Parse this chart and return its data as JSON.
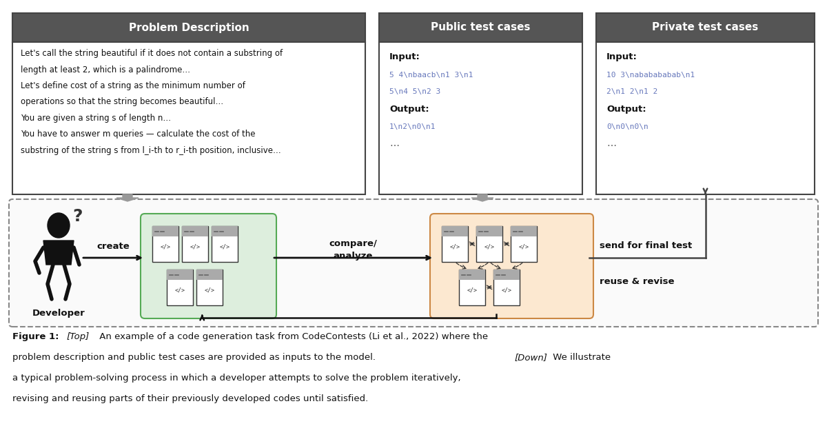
{
  "bg_color": "#ffffff",
  "fig_width": 12.0,
  "fig_height": 6.34,
  "header_bg": "#555555",
  "header_text_color": "#ffffff",
  "box_border_color": "#555555",
  "prob_desc_header": "Problem Description",
  "prob_desc_lines": [
    "Let's call the string beautiful if it does not contain a substring of",
    "length at least 2, which is a palindrome…",
    "Let's define cost of a string as the minimum number of",
    "operations so that the string becomes beautiful…",
    "You are given a string s of length n…",
    "You have to answer m queries — calculate the cost of the",
    "substring of the string s from l_i-th to r_i-th position, inclusive…"
  ],
  "pub_header": "Public test cases",
  "priv_header": "Private test cases",
  "green_box_bg": "#ddeedd",
  "orange_box_bg": "#fce8d0",
  "code_color": "#6677bb"
}
